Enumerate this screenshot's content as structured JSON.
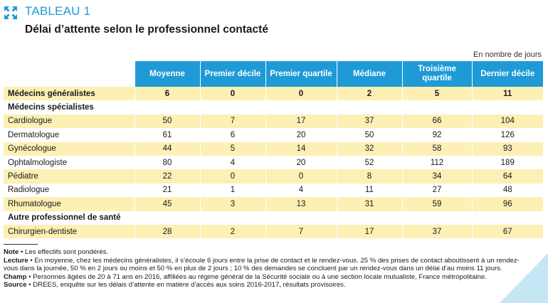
{
  "header": {
    "icon": "expand-arrows-icon",
    "tableau_label": "TABLEAU 1",
    "title": "Délai d’attente selon le professionnel contacté"
  },
  "units_note": "En nombre de jours",
  "columns": [
    "Moyenne",
    "Premier décile",
    "Premier quartile",
    "Médiane",
    "Troisième quartile",
    "Dernier décile"
  ],
  "rows": [
    {
      "label": "Médecins généralistes",
      "values": [
        "6",
        "0",
        "0",
        "2",
        "5",
        "11"
      ],
      "style": "yellow",
      "group": true
    },
    {
      "label": "Médecins spécialistes",
      "values": [
        "",
        "",
        "",
        "",
        "",
        ""
      ],
      "style": "white",
      "group": true
    },
    {
      "label": "Cardiologue",
      "values": [
        "50",
        "7",
        "17",
        "37",
        "66",
        "104"
      ],
      "style": "yellow",
      "group": false
    },
    {
      "label": "Dermatologue",
      "values": [
        "61",
        "6",
        "20",
        "50",
        "92",
        "126"
      ],
      "style": "white",
      "group": false
    },
    {
      "label": "Gynécologue",
      "values": [
        "44",
        "5",
        "14",
        "32",
        "58",
        "93"
      ],
      "style": "yellow",
      "group": false
    },
    {
      "label": "Ophtalmologiste",
      "values": [
        "80",
        "4",
        "20",
        "52",
        "112",
        "189"
      ],
      "style": "white",
      "group": false
    },
    {
      "label": "Pédiatre",
      "values": [
        "22",
        "0",
        "0",
        "8",
        "34",
        "64"
      ],
      "style": "yellow",
      "group": false
    },
    {
      "label": "Radiologue",
      "values": [
        "21",
        "1",
        "4",
        "11",
        "27",
        "48"
      ],
      "style": "white",
      "group": false
    },
    {
      "label": "Rhumatologue",
      "values": [
        "45",
        "3",
        "13",
        "31",
        "59",
        "96"
      ],
      "style": "yellow",
      "group": false
    },
    {
      "label": "Autre professionnel de santé",
      "values": [
        "",
        "",
        "",
        "",
        "",
        ""
      ],
      "style": "white",
      "group": true
    },
    {
      "label": "Chirurgien-dentiste",
      "values": [
        "28",
        "2",
        "7",
        "17",
        "37",
        "67"
      ],
      "style": "yellow",
      "group": false
    }
  ],
  "notes": [
    {
      "label": "Note",
      "text": " • Les effectifs sont pondérés."
    },
    {
      "label": "Lecture",
      "text": " • En moyenne, chez les médecins généralistes, il s’écoule 6 jours entre la prise de contact et le rendez-vous. 25 % des prises de contact aboutissent à un rendez-vous dans la journée, 50 % en 2 jours ou moins et 50 % en plus de 2 jours ; 10 % des demandes se concluent par un rendez-vous dans un délai d’au moins 11 jours."
    },
    {
      "label": "Champ",
      "text": " • Personnes âgées de 20 à 71 ans en 2016, affiliées au régime général de la Sécurité sociale ou à une section locale mutualiste, France métropolitaine."
    },
    {
      "label": "Source",
      "text": " • DREES, enquête sur les délais d’attente en matière d’accès aux soins 2016-2017, résultats provisoires."
    }
  ],
  "colors": {
    "accent": "#1e9ad6",
    "row_highlight": "#fcf0b5",
    "corner": "#c5e6f5"
  }
}
